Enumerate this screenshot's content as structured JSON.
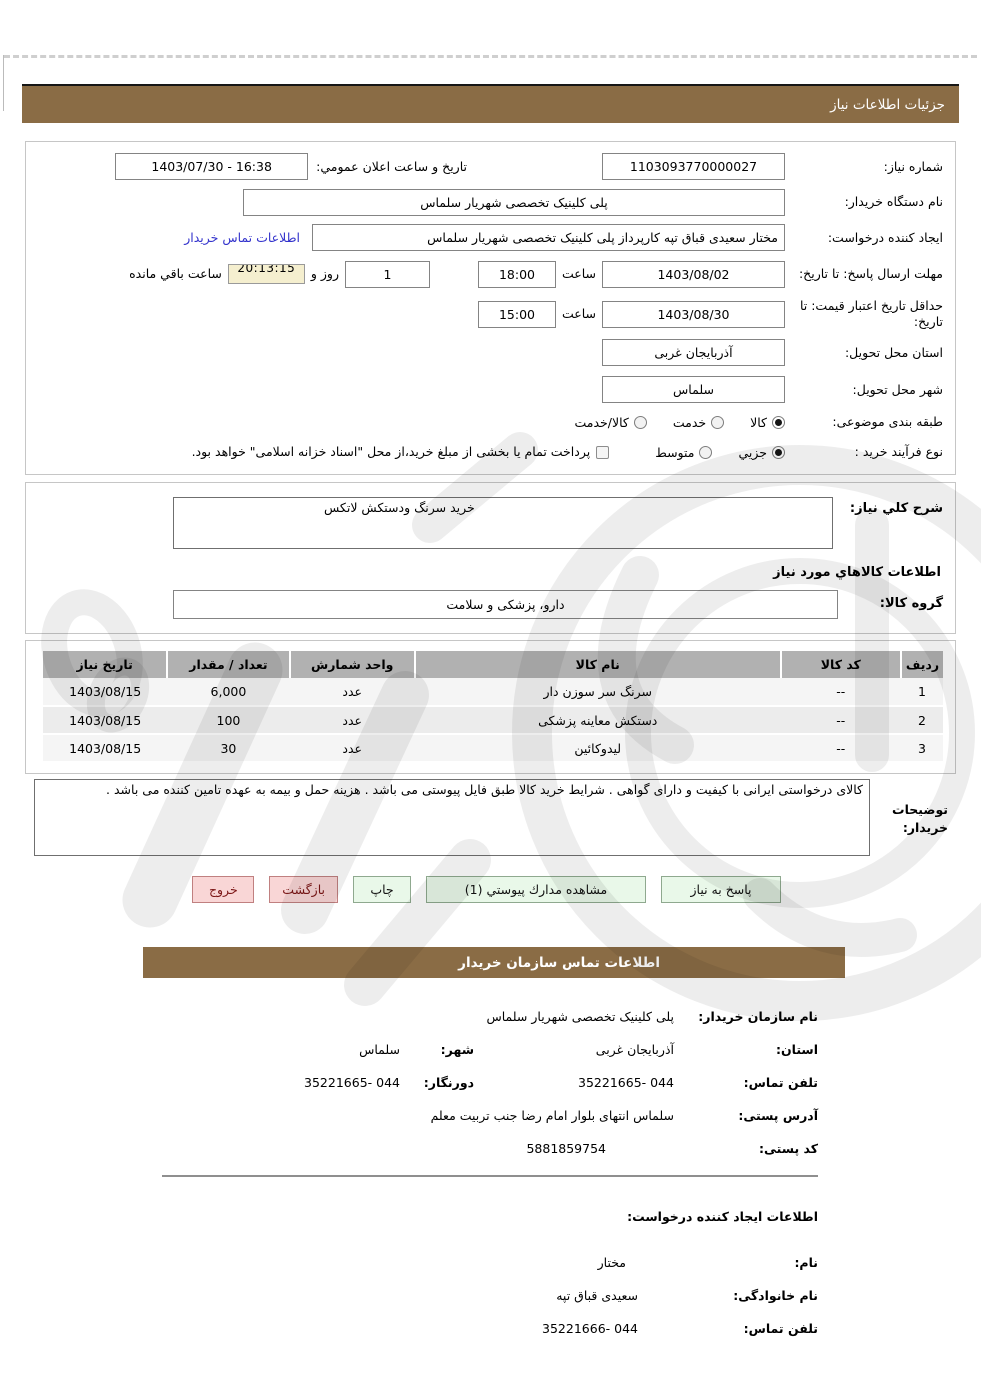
{
  "header": {
    "title": "جزئیات اطلاعات نیاز"
  },
  "theme": {
    "accent_brown": "#8a6c45",
    "link_blue": "#3333cc",
    "button_green_bg": "#e9f8e9",
    "button_pink_bg": "#f9d6d6",
    "countdown_bg": "#f5efcf",
    "table_header_gray": "#b1b1b1"
  },
  "form": {
    "need_number": {
      "label": "شماره نیاز:",
      "value": "1103093770000027"
    },
    "announce_datetime": {
      "label": "تاریخ و ساعت اعلان عمومي:",
      "value": "1403/07/30 - 16:38"
    },
    "buyer_org": {
      "label": "نام دستگاه خریدار:",
      "value": "پلی کلینیک تخصصی شهریار سلماس"
    },
    "request_creator": {
      "label": "ایجاد کننده درخواست:",
      "value": "مختار سعیدی قباق تپه کارپرداز پلی کلینیک تخصصی شهریار سلماس",
      "link": "اطلاعات تماس خریدار"
    },
    "reply_deadline": {
      "label": "مهلت ارسال پاسخ: تا تاریخ:",
      "date": "1403/08/02",
      "hour_label": "ساعت",
      "time": "18:00",
      "days": "1",
      "days_label": "روز و",
      "countdown": "20:13:15",
      "countdown_label": "ساعت باقي مانده"
    },
    "price_validity": {
      "label": "حداقل تاریخ اعتبار قیمت: تا تاریخ:",
      "date": "1403/08/30",
      "hour_label": "ساعت",
      "time": "15:00"
    },
    "province": {
      "label": "استان محل تحویل:",
      "value": "آذربایجان غربی"
    },
    "city": {
      "label": "شهر محل تحویل:",
      "value": "سلماس"
    },
    "classification": {
      "label": "طبقه بندی موضوعی:",
      "options": [
        "کالا",
        "خدمت",
        "کالا/خدمت"
      ],
      "selected": "کالا"
    },
    "process_type": {
      "label": "نوع فرآیند خرید :",
      "options": [
        "جزيي",
        "متوسط"
      ],
      "selected": "جزيي",
      "checkbox_label": "پرداخت تمام یا بخشی از مبلغ خرید،از محل \"اسناد خزانه اسلامی\" خواهد بود."
    }
  },
  "description": {
    "label": "شرح كلي نياز:",
    "value": "خرید سرنگ ودستکش لاتکس"
  },
  "goods": {
    "heading": "اطلاعات کالاهاي مورد نیاز",
    "group_label": "گروه کالا:",
    "group_value": "دارو، پزشکی و سلامت",
    "table": {
      "headers": [
        "ردیف",
        "کد کالا",
        "نام کالا",
        "واحد شمارش",
        "تعداد / مقدار",
        "تاریخ نیاز"
      ],
      "rows": [
        [
          "1",
          "--",
          "سرنگ سر سوزن دار",
          "عدد",
          "6,000",
          "1403/08/15"
        ],
        [
          "2",
          "--",
          "دستکش معاینه پزشکی",
          "عدد",
          "100",
          "1403/08/15"
        ],
        [
          "3",
          "--",
          "لیدوکائین",
          "عدد",
          "30",
          "1403/08/15"
        ]
      ]
    }
  },
  "buyer_notes": {
    "label": "توضیحات خریدار:",
    "value": "کالای درخواستی ایرانی با کیفیت و دارای گواهی  . شرایط خرید کالا طبق فایل پیوستی می باشد . هزینه حمل و بیمه به عهده تامین کننده می باشد ."
  },
  "buttons": {
    "reply": "پاسخ به نیاز",
    "attachments": "مشاهده مدارك پیوستي (1)",
    "print": "چاپ",
    "back": "بازگشت",
    "exit": "خروج"
  },
  "contact": {
    "bar_title": "اطلاعات تماس سازمان خریدار",
    "org_name": {
      "label": "نام سازمان خریدار:",
      "value": "پلی کلینیک تخصصی شهریار سلماس"
    },
    "province": {
      "label": "استان:",
      "value": "آذربایجان غربی"
    },
    "city": {
      "label": "شهر:",
      "value": "سلماس"
    },
    "phone": {
      "label": "تلفن تماس:",
      "value": "35221665- 044"
    },
    "fax": {
      "label": "دورنگار:",
      "value": "35221665- 044"
    },
    "address": {
      "label": "آدرس پستی:",
      "value": "سلماس انتهای بلوار امام رضا جنب تربیت معلم"
    },
    "postal_code": {
      "label": "کد پستی:",
      "value": "5881859754"
    }
  },
  "creator": {
    "heading": "اطلاعات ایجاد کننده درخواست:",
    "first_name": {
      "label": "نام:",
      "value": "مختار"
    },
    "last_name": {
      "label": "نام خانوادگی:",
      "value": "سعیدی قباق تپه"
    },
    "phone": {
      "label": "تلفن تماس:",
      "value": "35221666- 044"
    }
  }
}
